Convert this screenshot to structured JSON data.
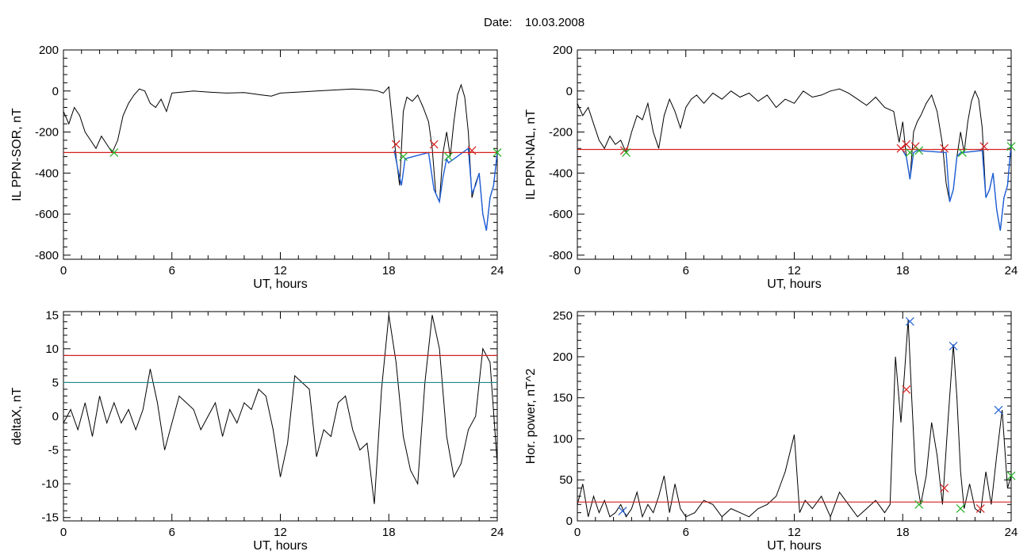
{
  "figure": {
    "date_label": "Date:",
    "date_value": "10.03.2008"
  },
  "chart_data": [
    {
      "id": "sor",
      "type": "line",
      "xlabel": "UT, hours",
      "ylabel": "IL PPN-SOR, nT",
      "xlim": [
        0,
        24
      ],
      "ylim": [
        -820,
        200
      ],
      "xticks": [
        0,
        6,
        12,
        18,
        24
      ],
      "yticks": [
        -800,
        -600,
        -400,
        -200,
        0,
        200
      ],
      "series": [
        {
          "color": "#000000",
          "x": [
            0,
            0.3,
            0.6,
            0.9,
            1.2,
            1.5,
            1.8,
            2.1,
            2.4,
            2.7,
            3.0,
            3.3,
            3.6,
            3.9,
            4.2,
            4.5,
            4.8,
            5.1,
            5.4,
            5.7,
            6.0,
            6.6,
            7.2,
            8.0,
            9.0,
            10.0,
            11.0,
            11.5,
            12.0,
            13.0,
            14.0,
            15.0,
            16.0,
            17.0,
            17.4,
            17.7,
            18.0,
            18.2,
            18.4,
            18.6,
            18.8,
            19.0,
            19.3,
            19.6,
            19.9,
            20.2,
            20.4,
            20.6,
            20.8,
            21.0,
            21.2,
            21.4,
            21.6,
            21.8,
            22.0,
            22.2,
            22.4,
            22.6,
            22.8,
            23.0,
            23.2,
            23.4,
            23.6,
            23.8,
            24.0
          ],
          "y": [
            -100,
            -160,
            -80,
            -120,
            -200,
            -240,
            -280,
            -220,
            -260,
            -300,
            -240,
            -120,
            -60,
            -20,
            10,
            0,
            -60,
            -80,
            -40,
            -100,
            -10,
            -5,
            0,
            -5,
            -10,
            -8,
            -20,
            -25,
            -10,
            -5,
            0,
            5,
            10,
            5,
            0,
            -10,
            20,
            -150,
            -320,
            -460,
            -100,
            -30,
            -50,
            -20,
            -80,
            -150,
            -280,
            -500,
            -540,
            -300,
            -200,
            -320,
            -150,
            -20,
            30,
            -30,
            -200,
            -520,
            -450,
            -400,
            -600,
            -680,
            -520,
            -460,
            -300
          ]
        },
        {
          "color": "#1f5fd6",
          "x": [
            18.3,
            18.5,
            18.7,
            18.9,
            20.2,
            20.5,
            20.8,
            21.0,
            21.2,
            21.3,
            22.4,
            22.6,
            22.8,
            23.0,
            23.2,
            23.4,
            23.6,
            23.8,
            24.0
          ],
          "y": [
            -290,
            -380,
            -460,
            -330,
            -300,
            -480,
            -540,
            -420,
            -330,
            -350,
            -280,
            -500,
            -460,
            -400,
            -600,
            -680,
            -520,
            -460,
            -300
          ]
        }
      ],
      "hlines": [
        {
          "y": -300,
          "color": "#d62020"
        }
      ],
      "markers": [
        {
          "x": 2.8,
          "y": -300,
          "color": "#22b022"
        },
        {
          "x": 18.4,
          "y": -260,
          "color": "#d62020"
        },
        {
          "x": 18.8,
          "y": -320,
          "color": "#22b022"
        },
        {
          "x": 20.5,
          "y": -260,
          "color": "#d62020"
        },
        {
          "x": 21.3,
          "y": -320,
          "color": "#22b022"
        },
        {
          "x": 22.6,
          "y": -290,
          "color": "#d62020"
        },
        {
          "x": 24.0,
          "y": -300,
          "color": "#22b022"
        }
      ]
    },
    {
      "id": "nal",
      "type": "line",
      "xlabel": "UT, hours",
      "ylabel": "IL PPN-NAL, nT",
      "xlim": [
        0,
        24
      ],
      "ylim": [
        -820,
        200
      ],
      "xticks": [
        0,
        6,
        12,
        18,
        24
      ],
      "yticks": [
        -800,
        -600,
        -400,
        -200,
        0,
        200
      ],
      "series": [
        {
          "color": "#000000",
          "x": [
            0,
            0.3,
            0.6,
            0.9,
            1.2,
            1.5,
            1.8,
            2.1,
            2.4,
            2.7,
            3.0,
            3.3,
            3.6,
            3.9,
            4.2,
            4.5,
            4.8,
            5.1,
            5.4,
            5.7,
            6.0,
            6.3,
            6.6,
            7.0,
            7.5,
            8.0,
            8.5,
            9.0,
            9.5,
            10.0,
            10.5,
            11.0,
            11.5,
            12.0,
            12.5,
            13.0,
            13.5,
            14.0,
            14.5,
            15.0,
            15.5,
            16.0,
            16.5,
            17.0,
            17.5,
            17.8,
            18.0,
            18.2,
            18.4,
            18.6,
            18.8,
            19.0,
            19.3,
            19.6,
            19.9,
            20.2,
            20.4,
            20.6,
            20.8,
            21.0,
            21.2,
            21.4,
            21.6,
            21.8,
            22.0,
            22.2,
            22.4,
            22.6,
            22.8,
            23.0,
            23.2,
            23.4,
            23.6,
            23.8,
            24.0
          ],
          "y": [
            -60,
            -120,
            -80,
            -160,
            -240,
            -280,
            -220,
            -260,
            -240,
            -300,
            -200,
            -120,
            -140,
            -60,
            -200,
            -280,
            -120,
            -40,
            -100,
            -180,
            -80,
            -40,
            -20,
            -60,
            -10,
            -40,
            0,
            -30,
            -10,
            -50,
            -20,
            -80,
            -40,
            -60,
            0,
            -30,
            -20,
            0,
            10,
            -10,
            -40,
            -70,
            -30,
            -80,
            -100,
            -250,
            -150,
            -320,
            -430,
            -200,
            -150,
            -120,
            -60,
            -20,
            -100,
            -260,
            -450,
            -540,
            -480,
            -320,
            -200,
            -300,
            -150,
            -50,
            0,
            -40,
            -180,
            -520,
            -480,
            -400,
            -580,
            -680,
            -520,
            -460,
            -250
          ]
        },
        {
          "color": "#1f5fd6",
          "x": [
            18.0,
            18.2,
            18.4,
            18.6,
            18.8,
            20.4,
            20.6,
            20.8,
            21.0,
            21.2,
            21.3,
            22.4,
            22.6,
            22.8,
            23.0,
            23.2,
            23.4,
            23.6,
            23.8,
            24.0
          ],
          "y": [
            -290,
            -320,
            -430,
            -300,
            -290,
            -300,
            -540,
            -480,
            -320,
            -300,
            -300,
            -290,
            -520,
            -480,
            -400,
            -580,
            -680,
            -520,
            -460,
            -260
          ]
        }
      ],
      "hlines": [
        {
          "y": -285,
          "color": "#d62020"
        }
      ],
      "markers": [
        {
          "x": 2.6,
          "y": -290,
          "color": "#d62020"
        },
        {
          "x": 2.7,
          "y": -300,
          "color": "#22b022"
        },
        {
          "x": 17.9,
          "y": -280,
          "color": "#d62020"
        },
        {
          "x": 18.2,
          "y": -260,
          "color": "#d62020"
        },
        {
          "x": 18.4,
          "y": -300,
          "color": "#22b022"
        },
        {
          "x": 18.7,
          "y": -270,
          "color": "#d62020"
        },
        {
          "x": 18.9,
          "y": -290,
          "color": "#22b022"
        },
        {
          "x": 20.3,
          "y": -280,
          "color": "#d62020"
        },
        {
          "x": 21.3,
          "y": -300,
          "color": "#22b022"
        },
        {
          "x": 22.5,
          "y": -270,
          "color": "#d62020"
        },
        {
          "x": 24.0,
          "y": -270,
          "color": "#22b022"
        }
      ]
    },
    {
      "id": "deltax",
      "type": "line",
      "xlabel": "UT, hours",
      "ylabel": "deltaX, nT",
      "xlim": [
        0,
        24
      ],
      "ylim": [
        -15.5,
        15.5
      ],
      "xticks": [
        0,
        6,
        12,
        18,
        24
      ],
      "yticks": [
        -15,
        -10,
        -5,
        0,
        5,
        10,
        15
      ],
      "series": [
        {
          "color": "#000000",
          "x": [
            0,
            0.4,
            0.8,
            1.2,
            1.6,
            2.0,
            2.4,
            2.8,
            3.2,
            3.6,
            4.0,
            4.4,
            4.8,
            5.2,
            5.6,
            6.0,
            6.4,
            6.8,
            7.2,
            7.6,
            8.0,
            8.4,
            8.8,
            9.2,
            9.6,
            10.0,
            10.4,
            10.8,
            11.2,
            11.6,
            12.0,
            12.4,
            12.8,
            13.2,
            13.6,
            14.0,
            14.4,
            14.8,
            15.2,
            15.6,
            16.0,
            16.4,
            16.8,
            17.2,
            17.6,
            18.0,
            18.4,
            18.8,
            19.2,
            19.6,
            20.0,
            20.4,
            20.8,
            21.2,
            21.6,
            22.0,
            22.4,
            22.8,
            23.2,
            23.6,
            24.0
          ],
          "y": [
            -1,
            1,
            -2,
            2,
            -3,
            3,
            -1,
            2,
            -1,
            1,
            -2,
            1,
            7,
            2,
            -5,
            -1,
            3,
            2,
            1,
            -2,
            0,
            2,
            -3,
            1,
            -1,
            2,
            1,
            4,
            3,
            -2,
            -9,
            -4,
            6,
            5,
            4,
            -6,
            -2,
            -3,
            2,
            3,
            -2,
            -5,
            -4,
            -13,
            4,
            15,
            8,
            -3,
            -8,
            -10,
            5,
            15,
            10,
            -3,
            -9,
            -7,
            -2,
            0,
            10,
            8,
            -7
          ]
        }
      ],
      "hlines": [
        {
          "y": 9,
          "color": "#d62020"
        },
        {
          "y": 5,
          "color": "#1b8a8a"
        }
      ],
      "markers": []
    },
    {
      "id": "power",
      "type": "line",
      "xlabel": "UT, hours",
      "ylabel": "Hor. power, nT^2",
      "xlim": [
        0,
        24
      ],
      "ylim": [
        0,
        255
      ],
      "xticks": [
        0,
        6,
        12,
        18,
        24
      ],
      "yticks": [
        0,
        50,
        100,
        150,
        200,
        250
      ],
      "series": [
        {
          "color": "#000000",
          "x": [
            0,
            0.3,
            0.6,
            0.9,
            1.2,
            1.5,
            1.8,
            2.1,
            2.4,
            2.7,
            3.0,
            3.3,
            3.6,
            3.9,
            4.2,
            4.5,
            4.8,
            5.1,
            5.4,
            5.7,
            6.0,
            6.5,
            7.0,
            7.5,
            8.0,
            8.5,
            9.0,
            9.5,
            10.0,
            10.5,
            11.0,
            11.5,
            12.0,
            12.3,
            12.6,
            13.0,
            13.5,
            14.0,
            14.5,
            15.0,
            15.5,
            16.0,
            16.5,
            17.0,
            17.3,
            17.6,
            17.9,
            18.1,
            18.3,
            18.5,
            18.7,
            19.0,
            19.3,
            19.6,
            19.9,
            20.2,
            20.5,
            20.8,
            21.0,
            21.2,
            21.4,
            21.7,
            22.0,
            22.3,
            22.6,
            22.9,
            23.2,
            23.5,
            23.8,
            24.0
          ],
          "y": [
            20,
            45,
            5,
            30,
            10,
            25,
            5,
            10,
            20,
            5,
            15,
            35,
            5,
            20,
            10,
            30,
            55,
            10,
            45,
            15,
            5,
            10,
            25,
            20,
            5,
            15,
            10,
            5,
            15,
            20,
            30,
            60,
            105,
            10,
            25,
            15,
            30,
            5,
            35,
            20,
            5,
            15,
            25,
            10,
            20,
            200,
            120,
            180,
            245,
            150,
            60,
            20,
            55,
            120,
            80,
            20,
            120,
            215,
            150,
            60,
            15,
            45,
            15,
            10,
            60,
            20,
            80,
            135,
            40,
            55
          ]
        }
      ],
      "hlines": [
        {
          "y": 23,
          "color": "#d62020"
        }
      ],
      "markers": [
        {
          "x": 2.5,
          "y": 12,
          "color": "#1f5fd6"
        },
        {
          "x": 18.4,
          "y": 243,
          "color": "#1f5fd6"
        },
        {
          "x": 18.2,
          "y": 160,
          "color": "#d62020"
        },
        {
          "x": 18.9,
          "y": 20,
          "color": "#22b022"
        },
        {
          "x": 20.3,
          "y": 40,
          "color": "#d62020"
        },
        {
          "x": 20.8,
          "y": 213,
          "color": "#1f5fd6"
        },
        {
          "x": 21.2,
          "y": 15,
          "color": "#22b022"
        },
        {
          "x": 22.3,
          "y": 15,
          "color": "#d62020"
        },
        {
          "x": 23.3,
          "y": 135,
          "color": "#1f5fd6"
        },
        {
          "x": 24.0,
          "y": 55,
          "color": "#22b022"
        }
      ]
    }
  ]
}
